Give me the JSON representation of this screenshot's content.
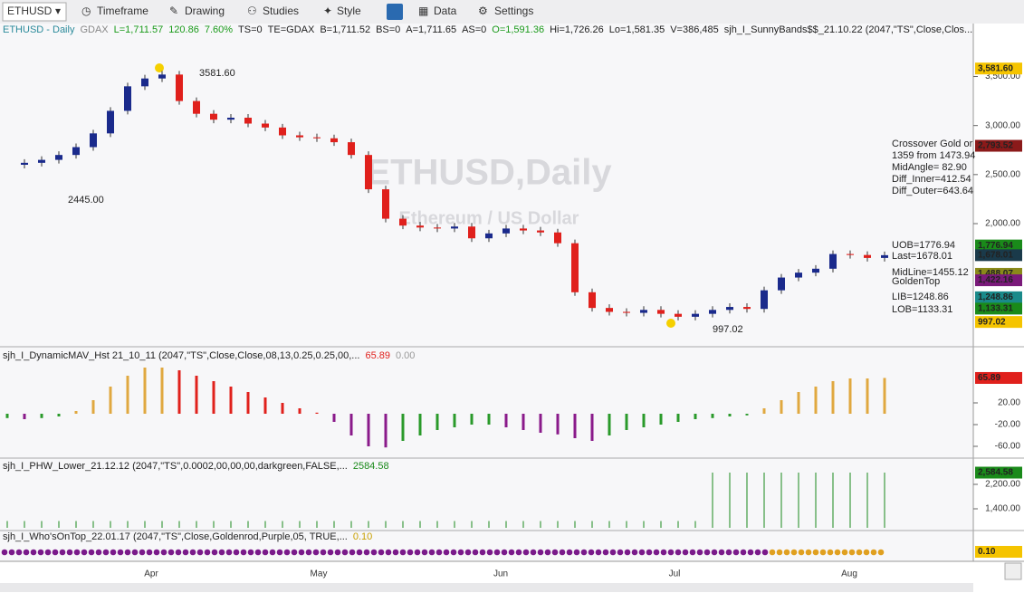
{
  "toolbar": {
    "symbol": "ETHUSD",
    "items": [
      "Timeframe",
      "Drawing",
      "Studies",
      "Style",
      "Data",
      "Settings"
    ]
  },
  "header": {
    "parts": [
      {
        "text": "ETHUSD - Daily",
        "color": "#2a8a9a"
      },
      {
        "text": "GDAX",
        "color": "#888888"
      },
      {
        "text": "L=1,711.57",
        "color": "#1a9a1a"
      },
      {
        "text": "120.86",
        "color": "#1a9a1a"
      },
      {
        "text": "7.60%",
        "color": "#1a9a1a"
      },
      {
        "text": "TS=0",
        "color": "#222222"
      },
      {
        "text": "TE=GDAX",
        "color": "#222222"
      },
      {
        "text": "B=1,711.52",
        "color": "#222222"
      },
      {
        "text": "BS=0",
        "color": "#222222"
      },
      {
        "text": "A=1,711.65",
        "color": "#222222"
      },
      {
        "text": "AS=0",
        "color": "#222222"
      },
      {
        "text": "O=1,591.36",
        "color": "#1a9a1a"
      },
      {
        "text": "Hi=1,726.26",
        "color": "#222222"
      },
      {
        "text": "Lo=1,581.35",
        "color": "#222222"
      },
      {
        "text": "V=386,485",
        "color": "#222222"
      },
      {
        "text": "sjh_I_SunnyBands$$_21.10.22 (2047,\"TS\",Close,Clos...",
        "color": "#222222"
      }
    ]
  },
  "price_panel": {
    "ylim": [
      772,
      3911
    ],
    "yticks": [
      {
        "value": 3500,
        "label": "3,500.00"
      },
      {
        "value": 3000,
        "label": "3,000.00"
      },
      {
        "value": 2500,
        "label": "2,500.00"
      },
      {
        "value": 2000,
        "label": "2,000.00"
      }
    ],
    "up_color": "#1a2a8c",
    "down_color": "#e0201c",
    "closes": [
      2600,
      2620,
      2650,
      2700,
      2780,
      2920,
      3150,
      3400,
      3480,
      3520,
      3250,
      3120,
      3060,
      3080,
      3020,
      2980,
      2900,
      2880,
      2870,
      2830,
      2700,
      2350,
      2050,
      1980,
      1960,
      1950,
      1970,
      1850,
      1900,
      1950,
      1930,
      1910,
      1800,
      1300,
      1140,
      1100,
      1090,
      1120,
      1080,
      1050,
      1080,
      1120,
      1150,
      1130,
      1320,
      1450,
      1500,
      1540,
      1690,
      1680,
      1650,
      1678
    ],
    "flags": [
      {
        "value": 3581.6,
        "label": "3,581.60",
        "color": "#f5c400",
        "text_color": "#000000"
      },
      {
        "value": 2793.52,
        "label": "2,793.52",
        "color": "#8b1a1a",
        "text_color": "#ffffff"
      },
      {
        "value": 1776.94,
        "label": "1,776.94",
        "color": "#1a8a1a",
        "text_color": "#ffffff"
      },
      {
        "value": 1678.01,
        "label": "1,678.01",
        "color": "#1a3a4a",
        "text_color": "#ffffff"
      },
      {
        "value": 1488.07,
        "label": "1,488.07",
        "color": "#8a8a1a",
        "text_color": "#000000"
      },
      {
        "value": 1422.16,
        "label": "1,422.16",
        "color": "#7a1a7a",
        "text_color": "#ffffff"
      },
      {
        "value": 1248.86,
        "label": "1,248.86",
        "color": "#1a8a8a",
        "text_color": "#ffffff"
      },
      {
        "value": 1133.31,
        "label": "1,133.31",
        "color": "#1a8a1a",
        "text_color": "#ffffff"
      },
      {
        "value": 997.02,
        "label": "997.02",
        "color": "#f5c400",
        "text_color": "#000000"
      }
    ],
    "annotations": {
      "high": "3581.60",
      "low1": "2445.00",
      "low2": "997.02"
    },
    "watermark": {
      "title": "ETHUSD,Daily",
      "subtitle": "Ethereum / US Dollar"
    },
    "info": [
      "Crossover Gold or",
      "1359 from 1473.94",
      "MidAngle= 82.90",
      "Diff_Inner=412.54",
      "Diff_Outer=643.64"
    ],
    "band_labels": {
      "uob": "UOB=1776.94",
      "last": "Last=1678.01",
      "mid": "MidLine=1455.12",
      "gold": "GoldenTop",
      "lib": "LIB=1248.86",
      "lob": "LOB=1133.31"
    }
  },
  "mav_panel": {
    "label": "sjh_I_DynamicMAV_Hst 21_10_11 (2047,\"TS\",Close,Close,08,13,0.25,0.25,00,...",
    "last": "65.89",
    "zero": "0.00",
    "ylim": [
      -80,
      120
    ],
    "yticks": [
      {
        "value": 20,
        "label": "20.00"
      },
      {
        "value": -20,
        "label": "-20.00"
      },
      {
        "value": -60,
        "label": "-60.00"
      }
    ],
    "values": [
      -8,
      -10,
      -8,
      -5,
      5,
      25,
      50,
      70,
      85,
      85,
      80,
      70,
      60,
      50,
      40,
      30,
      20,
      10,
      2,
      -15,
      -40,
      -60,
      -62,
      -50,
      -40,
      -30,
      -25,
      -20,
      -20,
      -25,
      -30,
      -35,
      -38,
      -45,
      -50,
      -40,
      -30,
      -25,
      -20,
      -15,
      -10,
      -8,
      -5,
      -3,
      10,
      25,
      40,
      50,
      60,
      65,
      65,
      65.89
    ],
    "colors": {
      "pos_up": "#e0a840",
      "pos_down": "#e0201c",
      "neg_up": "#2a9a2a",
      "neg_down": "#8a1a8a"
    },
    "flag": {
      "value": 65.89,
      "label": "65.89",
      "color": "#e0201c",
      "text_color": "#ffffff"
    }
  },
  "phw_panel": {
    "label": "sjh_I_PHW_Lower_21.12.12 (2047,\"TS\",0.0002,00,00,00,darkgreen,FALSE,...",
    "last": "2584.58",
    "ylim": [
      718,
      3030
    ],
    "yticks": [
      {
        "value": 2200,
        "label": "2,200.00"
      },
      {
        "value": 1400,
        "label": "1,400.00"
      }
    ],
    "color": "#1a8a1a",
    "values": [
      1000,
      1000,
      1000,
      1000,
      1000,
      1000,
      1000,
      1000,
      1000,
      1000,
      1000,
      1000,
      1000,
      1000,
      1000,
      1000,
      1000,
      1000,
      1000,
      1000,
      1000,
      1000,
      1000,
      1000,
      1000,
      1000,
      1000,
      1000,
      1000,
      1000,
      1000,
      1000,
      1000,
      1000,
      1000,
      1000,
      1000,
      1000,
      1000,
      1000,
      1000,
      2584.58,
      2584.58,
      2584.58,
      2584.58,
      2584.58,
      2584.58,
      2584.58,
      2584.58,
      2584.58,
      2584.58,
      2584.58
    ],
    "flag": {
      "value": 2584.58,
      "label": "2,584.58",
      "color": "#1a8a1a",
      "text_color": "#ffffff"
    }
  },
  "wot_panel": {
    "label": "sjh_I_Who'sOnTop_22.01.17 (2047,\"TS\",Close,Goldenrod,Purple,05, TRUE,...",
    "last": "0.10",
    "flag_label": "0.10"
  },
  "months": [
    "Apr",
    "May",
    "Jun",
    "Jul",
    "Aug"
  ]
}
